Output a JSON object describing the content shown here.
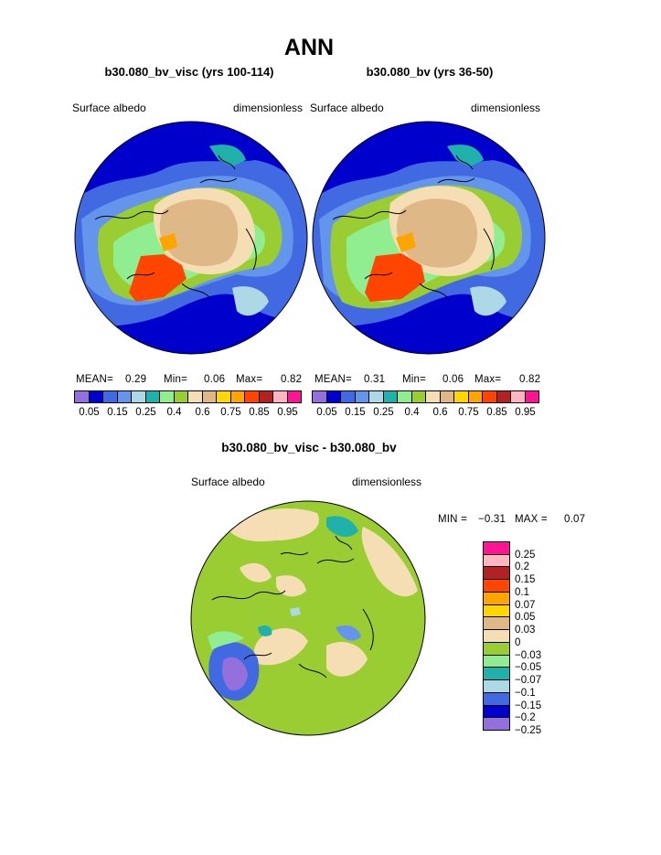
{
  "title": "ANN",
  "panels": [
    {
      "case_label": "b30.080_bv_visc (yrs 100-114)",
      "variable": "Surface albedo",
      "units": "dimensionless",
      "stats": {
        "mean_label": "MEAN=",
        "mean": "0.29",
        "min_label": "Min=",
        "min": "0.06",
        "max_label": "Max=",
        "max": "0.82"
      }
    },
    {
      "case_label": "b30.080_bv (yrs 36-50)",
      "variable": "Surface albedo",
      "units": "dimensionless",
      "stats": {
        "mean_label": "MEAN=",
        "mean": "0.31",
        "min_label": "Min=",
        "min": "0.06",
        "max_label": "Max=",
        "max": "0.82"
      }
    }
  ],
  "albedo_colorbar": {
    "colors": [
      "#9370db",
      "#0000cd",
      "#4169e1",
      "#6495ed",
      "#add8e6",
      "#20b2aa",
      "#90ee90",
      "#9acd32",
      "#f5deb3",
      "#deb887",
      "#ffd700",
      "#ffa500",
      "#ff4500",
      "#b22222",
      "#ffb6c1",
      "#ff1493"
    ],
    "labels": [
      "0.05",
      "0.15",
      "0.25",
      "0.4",
      "0.6",
      "0.75",
      "0.85",
      "0.95"
    ]
  },
  "difference": {
    "title": "b30.080_bv_visc - b30.080_bv",
    "variable": "Surface albedo",
    "units": "dimensionless",
    "min_label": "MIN =",
    "min": "−0.31",
    "max_label": "MAX =",
    "max": "0.07",
    "colors": [
      "#ff1493",
      "#ffb6c1",
      "#b22222",
      "#ff4500",
      "#ffa500",
      "#ffd700",
      "#deb887",
      "#f5deb3",
      "#9acd32",
      "#90ee90",
      "#20b2aa",
      "#add8e6",
      "#4169e1",
      "#0000cd",
      "#9370db"
    ],
    "labels": [
      "0.25",
      "0.2",
      "0.15",
      "0.1",
      "0.07",
      "0.05",
      "0.03",
      "0",
      "−0.03",
      "−0.05",
      "−0.07",
      "−0.1",
      "−0.15",
      "−0.2",
      "−0.25"
    ]
  }
}
